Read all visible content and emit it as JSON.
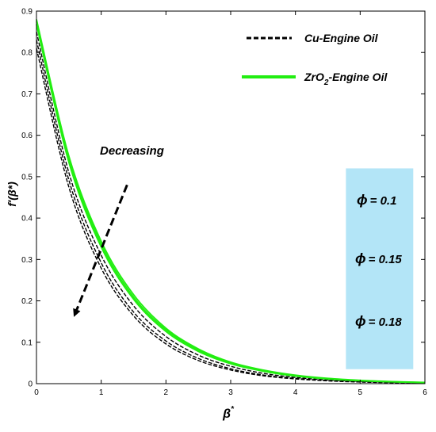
{
  "chart_data": {
    "type": "line",
    "xlabel": "β",
    "xlabel_sup": "*",
    "ylabel": "f′(β*)",
    "xlim": [
      0,
      6
    ],
    "ylim": [
      0,
      0.9
    ],
    "xticks": [
      "0",
      "1",
      "2",
      "3",
      "4",
      "5",
      "6"
    ],
    "yticks": [
      "0",
      "0.1",
      "0.2",
      "0.3",
      "0.4",
      "0.5",
      "0.6",
      "0.7",
      "0.8",
      "0.9"
    ],
    "grid": false,
    "legend": {
      "position": "top-right",
      "entries": [
        {
          "label": "Cu-Engine Oil",
          "style": "dashed",
          "color": "#000000"
        },
        {
          "label_parts": [
            "ZrO",
            "2",
            "-Engine Oil"
          ],
          "style": "solid",
          "color": "#22ee11"
        }
      ]
    },
    "annotation": {
      "text": "Decreasing",
      "arrow_from": [
        1.4,
        0.48
      ],
      "arrow_to": [
        0.6,
        0.17
      ]
    },
    "phi_box": {
      "color": "#b3e5f7",
      "symbol": "ϕ",
      "labels": [
        "= 0.1",
        "= 0.15",
        "= 0.18"
      ],
      "x_range": [
        4.78,
        5.82
      ],
      "y_range": [
        0.035,
        0.52
      ]
    },
    "series": [
      {
        "group": "Cu-Engine Oil",
        "phi": 0.1,
        "color": "#000000",
        "style": "dashed",
        "x": [
          0,
          0.5,
          1,
          1.5,
          2,
          2.5,
          3,
          3.5,
          4,
          4.5,
          5,
          5.5,
          6
        ],
        "y": [
          0.85,
          0.51,
          0.31,
          0.188,
          0.114,
          0.069,
          0.042,
          0.025,
          0.015,
          0.009,
          0.0056,
          0.0034,
          0.002
        ]
      },
      {
        "group": "Cu-Engine Oil",
        "phi": 0.15,
        "color": "#000000",
        "style": "dashed",
        "x": [
          0,
          0.5,
          1,
          1.5,
          2,
          2.5,
          3,
          3.5,
          4,
          4.5,
          5,
          5.5,
          6
        ],
        "y": [
          0.83,
          0.492,
          0.292,
          0.173,
          0.103,
          0.061,
          0.036,
          0.021,
          0.0127,
          0.0075,
          0.0045,
          0.0027,
          0.0016
        ]
      },
      {
        "group": "Cu-Engine Oil",
        "phi": 0.18,
        "color": "#000000",
        "style": "dashed",
        "x": [
          0,
          0.5,
          1,
          1.5,
          2,
          2.5,
          3,
          3.5,
          4,
          4.5,
          5,
          5.5,
          6
        ],
        "y": [
          0.81,
          0.475,
          0.279,
          0.164,
          0.096,
          0.056,
          0.033,
          0.019,
          0.0114,
          0.0067,
          0.0039,
          0.0023,
          0.0014
        ]
      },
      {
        "group": "ZrO2-Engine Oil",
        "phi": 0.1,
        "color": "#22ee11",
        "style": "solid",
        "x": [
          0,
          0.5,
          1,
          1.5,
          2,
          2.5,
          3,
          3.5,
          4,
          4.5,
          5,
          5.5,
          6
        ],
        "y": [
          0.88,
          0.55,
          0.344,
          0.215,
          0.134,
          0.084,
          0.052,
          0.033,
          0.0205,
          0.0128,
          0.008,
          0.005,
          0.0031
        ]
      },
      {
        "group": "ZrO2-Engine Oil",
        "phi": 0.15,
        "color": "#22ee11",
        "style": "solid",
        "x": [
          0,
          0.5,
          1,
          1.5,
          2,
          2.5,
          3,
          3.5,
          4,
          4.5,
          5,
          5.5,
          6
        ],
        "y": [
          0.875,
          0.543,
          0.337,
          0.209,
          0.13,
          0.081,
          0.05,
          0.031,
          0.0193,
          0.012,
          0.0074,
          0.0046,
          0.0029
        ]
      },
      {
        "group": "ZrO2-Engine Oil",
        "phi": 0.18,
        "color": "#22ee11",
        "style": "solid",
        "x": [
          0,
          0.5,
          1,
          1.5,
          2,
          2.5,
          3,
          3.5,
          4,
          4.5,
          5,
          5.5,
          6
        ],
        "y": [
          0.868,
          0.535,
          0.33,
          0.204,
          0.126,
          0.078,
          0.048,
          0.03,
          0.0183,
          0.0113,
          0.007,
          0.0043,
          0.0027
        ]
      }
    ]
  }
}
